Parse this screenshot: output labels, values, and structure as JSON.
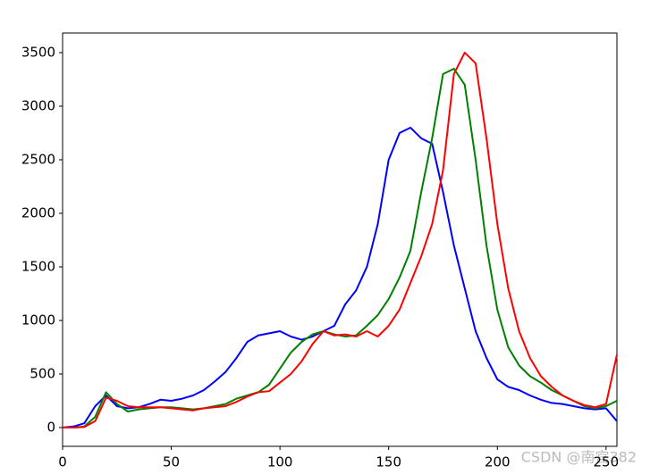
{
  "chart_data": {
    "type": "line",
    "x": [
      0,
      5,
      10,
      15,
      20,
      25,
      30,
      35,
      40,
      45,
      50,
      55,
      60,
      65,
      70,
      75,
      80,
      85,
      90,
      95,
      100,
      105,
      110,
      115,
      120,
      125,
      130,
      135,
      140,
      145,
      150,
      155,
      160,
      165,
      170,
      175,
      180,
      185,
      190,
      195,
      200,
      205,
      210,
      215,
      220,
      225,
      230,
      235,
      240,
      245,
      250,
      255
    ],
    "series": [
      {
        "color": "#0000ff",
        "values": [
          0,
          10,
          40,
          200,
          300,
          200,
          180,
          190,
          220,
          260,
          250,
          270,
          300,
          350,
          430,
          520,
          650,
          800,
          860,
          880,
          900,
          850,
          820,
          850,
          900,
          950,
          1150,
          1280,
          1500,
          1900,
          2500,
          2750,
          2800,
          2700,
          2650,
          2200,
          1700,
          1300,
          900,
          650,
          450,
          380,
          350,
          300,
          260,
          230,
          220,
          200,
          180,
          170,
          180,
          60
        ]
      },
      {
        "color": "#008000",
        "values": [
          0,
          0,
          10,
          100,
          330,
          220,
          150,
          170,
          180,
          190,
          190,
          180,
          170,
          180,
          200,
          220,
          270,
          300,
          330,
          400,
          550,
          700,
          800,
          870,
          900,
          870,
          850,
          860,
          950,
          1050,
          1200,
          1400,
          1650,
          2200,
          2700,
          3300,
          3350,
          3200,
          2500,
          1700,
          1100,
          750,
          580,
          480,
          420,
          350,
          300,
          250,
          200,
          180,
          200,
          250
        ]
      },
      {
        "color": "#ff0000",
        "values": [
          0,
          0,
          5,
          60,
          280,
          250,
          200,
          190,
          190,
          190,
          180,
          170,
          160,
          180,
          190,
          200,
          240,
          290,
          330,
          340,
          420,
          500,
          620,
          780,
          900,
          860,
          870,
          850,
          900,
          850,
          950,
          1100,
          1350,
          1600,
          1900,
          2400,
          3300,
          3500,
          3400,
          2700,
          1900,
          1300,
          900,
          650,
          480,
          380,
          300,
          250,
          210,
          190,
          220,
          680
        ]
      }
    ],
    "xlim": [
      0,
      255
    ],
    "ylim": [
      -175,
      3683
    ],
    "xticks": [
      0,
      50,
      100,
      150,
      200,
      250
    ],
    "yticks": [
      0,
      500,
      1000,
      1500,
      2000,
      2500,
      3000,
      3500
    ],
    "grid": false,
    "watermark": "CSDN @南宫382"
  }
}
